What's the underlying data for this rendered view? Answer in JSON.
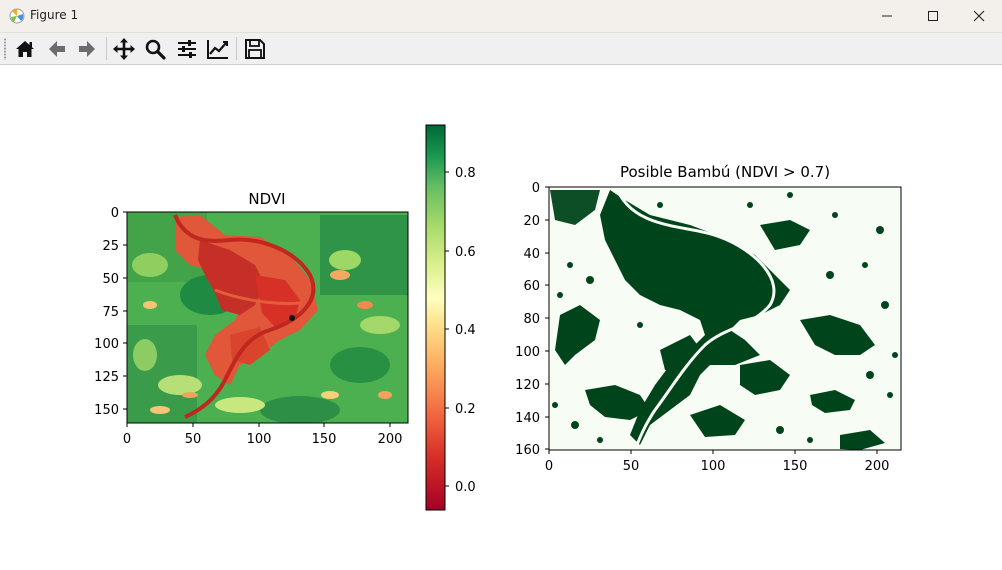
{
  "window": {
    "title": "Figure 1"
  },
  "toolbar": {
    "buttons": [
      {
        "name": "home-icon"
      },
      {
        "name": "back-icon"
      },
      {
        "name": "forward-icon"
      },
      {
        "name": "pan-icon"
      },
      {
        "name": "zoom-icon"
      },
      {
        "name": "configure-subplots-icon"
      },
      {
        "name": "edit-axes-icon"
      },
      {
        "name": "save-icon"
      }
    ]
  },
  "chart_data": [
    {
      "type": "heatmap",
      "title": "NDVI",
      "xlim": [
        0,
        214
      ],
      "ylim": [
        160,
        0
      ],
      "x_ticks": [
        "0",
        "50",
        "100",
        "150",
        "200"
      ],
      "y_ticks": [
        "0",
        "25",
        "50",
        "75",
        "100",
        "125",
        "150"
      ],
      "colormap": "RdYlGn",
      "colorbar": {
        "range": [
          -0.07,
          0.91
        ],
        "ticks": [
          "0.0",
          "0.2",
          "0.4",
          "0.6",
          "0.8"
        ],
        "colors": [
          "#a50026",
          "#f46d43",
          "#fee08b",
          "#ffffbf",
          "#d9ef8b",
          "#66bd63",
          "#006837"
        ]
      }
    },
    {
      "type": "heatmap",
      "title": "Posible Bambú (NDVI > 0.7)",
      "xlim": [
        0,
        214
      ],
      "ylim": [
        160,
        0
      ],
      "x_ticks": [
        "0",
        "50",
        "100",
        "150",
        "200"
      ],
      "y_ticks": [
        "0",
        "20",
        "40",
        "60",
        "80",
        "100",
        "120",
        "140",
        "160"
      ],
      "colormap": "Greens",
      "colors": [
        "#f7fcf5",
        "#00441b"
      ]
    }
  ]
}
